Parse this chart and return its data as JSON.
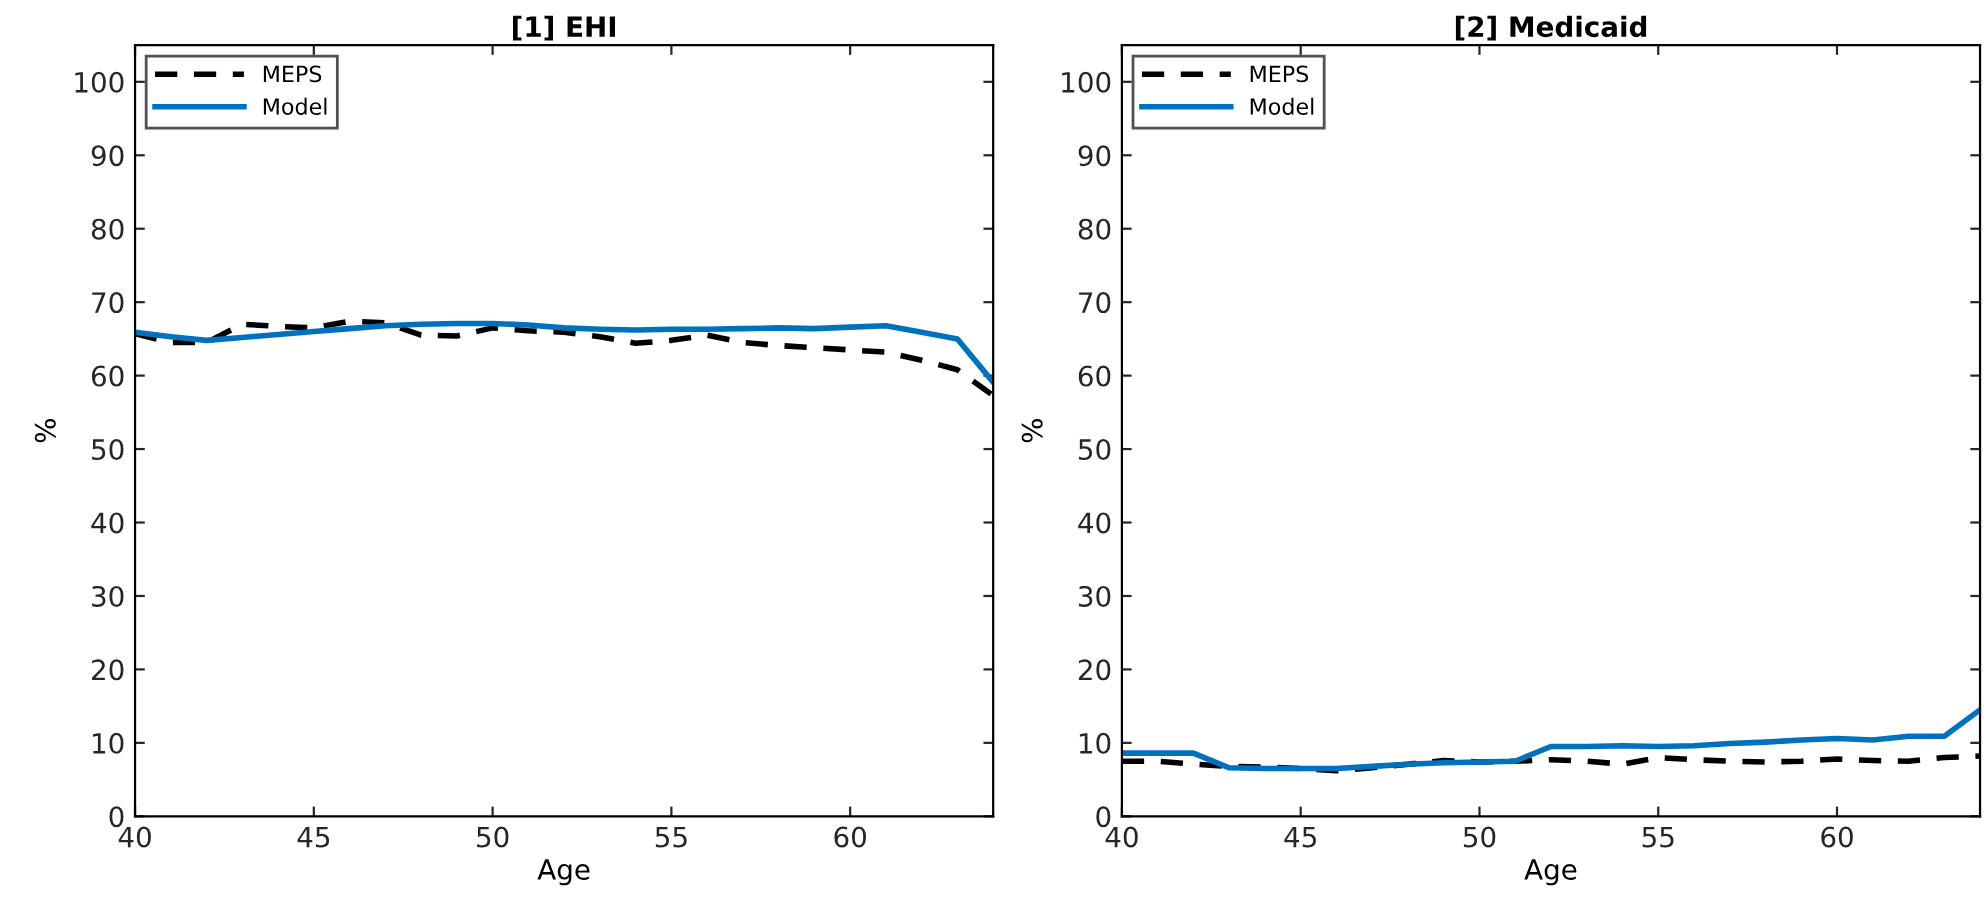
{
  "chart_data": [
    {
      "type": "line",
      "title": "[1] EHI",
      "xlabel": "Age",
      "ylabel": "%",
      "xlim": [
        40,
        64
      ],
      "xticks": [
        40,
        45,
        50,
        55,
        60
      ],
      "ylim": [
        0,
        105
      ],
      "yticks": [
        0,
        10,
        20,
        30,
        40,
        50,
        60,
        70,
        80,
        90,
        100
      ],
      "legend": "top left",
      "grid": false,
      "x": [
        40,
        41,
        42,
        43,
        44,
        45,
        46,
        47,
        48,
        49,
        50,
        51,
        52,
        53,
        54,
        55,
        56,
        57,
        58,
        59,
        60,
        61,
        62,
        63,
        64
      ],
      "series": [
        {
          "name": "MEPS",
          "color": "#000000",
          "line_style": "dashed",
          "values": [
            65.7,
            64.5,
            64.5,
            67.0,
            66.7,
            66.5,
            67.4,
            67.2,
            65.5,
            65.4,
            66.5,
            66.1,
            65.9,
            65.3,
            64.4,
            64.8,
            65.5,
            64.5,
            64.1,
            63.8,
            63.5,
            63.2,
            62.1,
            60.8,
            57.3
          ]
        },
        {
          "name": "Model",
          "color": "#0072bd",
          "line_style": "solid",
          "values": [
            65.9,
            65.3,
            64.8,
            65.2,
            65.6,
            66.0,
            66.4,
            66.8,
            67.0,
            67.1,
            67.1,
            66.9,
            66.5,
            66.3,
            66.2,
            66.3,
            66.3,
            66.4,
            66.5,
            66.4,
            66.6,
            66.8,
            65.9,
            65.0,
            59.1
          ]
        }
      ]
    },
    {
      "type": "line",
      "title": "[2] Medicaid",
      "xlabel": "Age",
      "ylabel": "%",
      "xlim": [
        40,
        64
      ],
      "xticks": [
        40,
        45,
        50,
        55,
        60
      ],
      "ylim": [
        0,
        105
      ],
      "yticks": [
        0,
        10,
        20,
        30,
        40,
        50,
        60,
        70,
        80,
        90,
        100
      ],
      "legend": "top left",
      "grid": false,
      "x": [
        40,
        41,
        42,
        43,
        44,
        45,
        46,
        47,
        48,
        49,
        50,
        51,
        52,
        53,
        54,
        55,
        56,
        57,
        58,
        59,
        60,
        61,
        62,
        63,
        64
      ],
      "series": [
        {
          "name": "MEPS",
          "color": "#000000",
          "line_style": "dashed",
          "values": [
            7.5,
            7.5,
            7.1,
            6.8,
            6.7,
            6.5,
            6.2,
            6.6,
            7.1,
            7.6,
            7.4,
            7.5,
            7.7,
            7.5,
            7.1,
            8.0,
            7.7,
            7.5,
            7.4,
            7.5,
            7.8,
            7.6,
            7.5,
            8.0,
            8.2
          ]
        },
        {
          "name": "Model",
          "color": "#0072bd",
          "line_style": "solid",
          "values": [
            8.6,
            8.6,
            8.6,
            6.6,
            6.5,
            6.5,
            6.5,
            6.8,
            7.1,
            7.3,
            7.4,
            7.5,
            9.5,
            9.5,
            9.6,
            9.5,
            9.6,
            9.9,
            10.1,
            10.4,
            10.6,
            10.4,
            10.9,
            10.9,
            14.5
          ]
        }
      ]
    }
  ]
}
